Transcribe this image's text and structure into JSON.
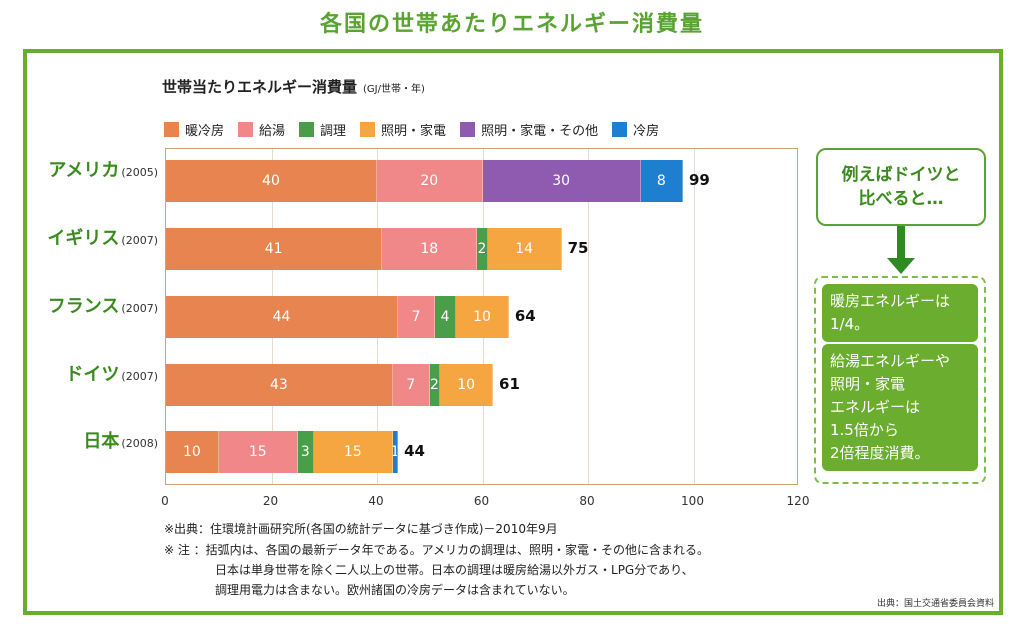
{
  "page_title": "各国の世帯あたりエネルギー消費量",
  "chart_data": {
    "type": "bar",
    "orientation": "horizontal",
    "stacked": true,
    "title": "世帯当たりエネルギー消費量",
    "unit": "(GJ/世帯・年)",
    "xlim": [
      0,
      120
    ],
    "xticks": [
      "0",
      "20",
      "40",
      "60",
      "80",
      "100",
      "120"
    ],
    "legend": [
      {
        "name": "暖冷房",
        "color": "#e8844f"
      },
      {
        "name": "給湯",
        "color": "#f0888a"
      },
      {
        "name": "調理",
        "color": "#4a9e4a"
      },
      {
        "name": "照明・家電",
        "color": "#f5a640"
      },
      {
        "name": "照明・家電・その他",
        "color": "#8e5bb0"
      },
      {
        "name": "冷房",
        "color": "#1e7fd0"
      }
    ],
    "countries": [
      {
        "name": "アメリカ",
        "year": "(2005)",
        "total": "99",
        "segments": [
          {
            "series": "暖冷房",
            "value": 40,
            "label": "40",
            "color": "#e8844f"
          },
          {
            "series": "給湯",
            "value": 20,
            "label": "20",
            "color": "#f0888a"
          },
          {
            "series": "照明・家電・その他",
            "value": 30,
            "label": "30",
            "color": "#8e5bb0"
          },
          {
            "series": "冷房",
            "value": 8,
            "label": "8",
            "color": "#1e7fd0"
          }
        ]
      },
      {
        "name": "イギリス",
        "year": "(2007)",
        "total": "75",
        "segments": [
          {
            "series": "暖冷房",
            "value": 41,
            "label": "41",
            "color": "#e8844f"
          },
          {
            "series": "給湯",
            "value": 18,
            "label": "18",
            "color": "#f0888a"
          },
          {
            "series": "調理",
            "value": 2,
            "label": "2",
            "color": "#4a9e4a"
          },
          {
            "series": "照明・家電",
            "value": 14,
            "label": "14",
            "color": "#f5a640"
          }
        ]
      },
      {
        "name": "フランス",
        "year": "(2007)",
        "total": "64",
        "segments": [
          {
            "series": "暖冷房",
            "value": 44,
            "label": "44",
            "color": "#e8844f"
          },
          {
            "series": "給湯",
            "value": 7,
            "label": "7",
            "color": "#f0888a"
          },
          {
            "series": "調理",
            "value": 4,
            "label": "4",
            "color": "#4a9e4a"
          },
          {
            "series": "照明・家電",
            "value": 10,
            "label": "10",
            "color": "#f5a640"
          }
        ]
      },
      {
        "name": "ドイツ",
        "year": "(2007)",
        "total": "61",
        "segments": [
          {
            "series": "暖冷房",
            "value": 43,
            "label": "43",
            "color": "#e8844f"
          },
          {
            "series": "給湯",
            "value": 7,
            "label": "7",
            "color": "#f0888a"
          },
          {
            "series": "調理",
            "value": 2,
            "label": "2",
            "color": "#4a9e4a"
          },
          {
            "series": "照明・家電",
            "value": 10,
            "label": "10",
            "color": "#f5a640"
          }
        ]
      },
      {
        "name": "日本",
        "year": "(2008)",
        "total": "44",
        "segments": [
          {
            "series": "暖冷房",
            "value": 10,
            "label": "10",
            "color": "#e8844f"
          },
          {
            "series": "給湯",
            "value": 15,
            "label": "15",
            "color": "#f0888a"
          },
          {
            "series": "調理",
            "value": 3,
            "label": "3",
            "color": "#4a9e4a"
          },
          {
            "series": "照明・家電",
            "value": 15,
            "label": "15",
            "color": "#f5a640"
          },
          {
            "series": "冷房",
            "value": 1,
            "label": "1",
            "color": "#1e7fd0"
          }
        ]
      }
    ]
  },
  "callout": {
    "line1": "例えばドイツと",
    "line2": "比べると…"
  },
  "findings": [
    {
      "lines": [
        "暖房エネルギーは",
        "1/4。"
      ]
    },
    {
      "lines": [
        "給湯エネルギーや",
        "照明・家電",
        "エネルギーは",
        "1.5倍から",
        "2倍程度消費。"
      ]
    }
  ],
  "notes": {
    "source": "※出典：住環境計画研究所(各国の統計データに基づき作成)－2010年9月",
    "note1": "※ 注 ：括弧内は、各国の最新データ年である。アメリカの調理は、照明・家電・その他に含まれる。",
    "note2": "日本は単身世帯を除く二人以上の世帯。日本の調理は暖房給湯以外ガス・LPG分であり、",
    "note3": "調理用電力は含まない。欧州諸国の冷房データは含まれていない。"
  },
  "credit": "出典：国土交通省委員会資料",
  "colors": {
    "frame": "#6aad2f",
    "title": "#5aa332",
    "country": "#3a8a1e"
  }
}
